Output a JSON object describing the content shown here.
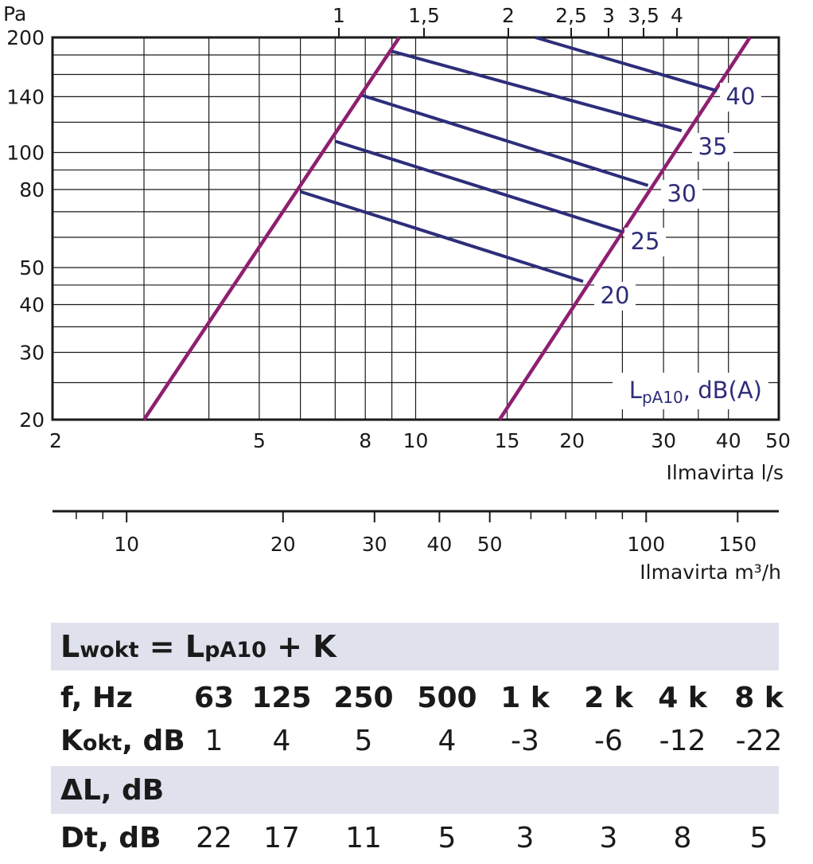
{
  "chart_data": {
    "type": "line",
    "y_axis": {
      "label": "Pa",
      "scale": "log",
      "range": [
        20,
        200
      ],
      "ticks": [
        20,
        30,
        40,
        50,
        80,
        100,
        140,
        200
      ]
    },
    "x_axis": {
      "label": "Ilmavirta l/s",
      "scale": "log",
      "range": [
        2,
        50
      ],
      "ticks": [
        2,
        5,
        8,
        10,
        15,
        20,
        30,
        40,
        50
      ]
    },
    "x_axis_top": {
      "label": "",
      "ticks": [
        "1",
        "1,5",
        "2",
        "2,5",
        "3",
        "3,5",
        "4"
      ]
    },
    "x_axis_secondary": {
      "label": "Ilmavirta m³/h",
      "scale": "log",
      "ticks": [
        10,
        20,
        30,
        40,
        50,
        100,
        150
      ]
    },
    "grid": true,
    "noise_label_title": "L",
    "noise_label_sub": "pA10",
    "noise_label_tail": ", dB(A)",
    "boundary_lines": [
      {
        "x": [
          3.0,
          9.3
        ],
        "y": [
          20,
          200
        ]
      },
      {
        "x": [
          14.5,
          44.0
        ],
        "y": [
          20,
          200
        ]
      }
    ],
    "noise_lines": [
      {
        "name": "20",
        "x": [
          6.0,
          21.0
        ],
        "y": [
          79,
          46
        ]
      },
      {
        "name": "25",
        "x": [
          7.0,
          25.0
        ],
        "y": [
          107,
          62
        ]
      },
      {
        "name": "30",
        "x": [
          7.9,
          28.0
        ],
        "y": [
          141,
          82
        ]
      },
      {
        "name": "35",
        "x": [
          9.0,
          32.5
        ],
        "y": [
          184,
          114
        ]
      },
      {
        "name": "40",
        "x": [
          17.0,
          38.0
        ],
        "y": [
          200,
          145
        ]
      }
    ],
    "colors": {
      "boundary": "#8e1f70",
      "noise": "#2e2d7a",
      "label": "#2e2d7a"
    }
  },
  "table": {
    "formula_lhs": "L",
    "formula_lhs_sub": "wokt",
    "formula_mid": " = L",
    "formula_mid_sub": "pA10",
    "formula_rhs": " + K",
    "freq_label": "f, Hz",
    "frequencies": [
      "63",
      "125",
      "250",
      "500",
      "1 k",
      "2 k",
      "4 k",
      "8 k"
    ],
    "k_label": "K",
    "k_label_sub": "okt",
    "k_label_tail": ", dB",
    "k_values": [
      "1",
      "4",
      "5",
      "4",
      "-3",
      "-6",
      "-12",
      "-22"
    ],
    "delta_label": "ΔL, dB",
    "dt_label": "Dt, dB",
    "dt_values": [
      "22",
      "17",
      "11",
      "5",
      "3",
      "3",
      "8",
      "5"
    ],
    "band_color": "#dfe2ec"
  }
}
